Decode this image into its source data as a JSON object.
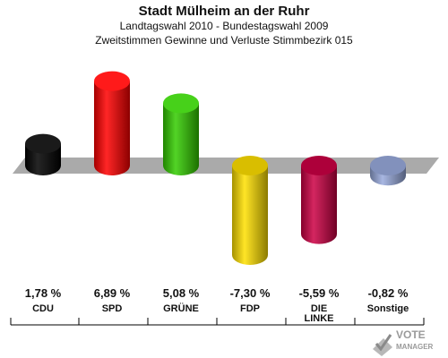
{
  "header": {
    "title": "Stadt Mülheim an der Ruhr",
    "subtitle1": "Landtagswahl 2010 - Bundestagswahl 2009",
    "subtitle2": "Zweitstimmen Gewinne und Verluste Stimmbezirk 015"
  },
  "logo": {
    "line1": "VOTE",
    "line2": "MANAGER"
  },
  "chart_data": {
    "type": "bar",
    "categories": [
      "CDU",
      "SPD",
      "GRÜNE",
      "FDP",
      "DIE LINKE",
      "Sonstige"
    ],
    "category_lines": [
      [
        "CDU"
      ],
      [
        "SPD"
      ],
      [
        "GRÜNE"
      ],
      [
        "FDP"
      ],
      [
        "DIE",
        "LINKE"
      ],
      [
        "Sonstige"
      ]
    ],
    "values": [
      1.78,
      6.89,
      5.08,
      -7.3,
      -5.59,
      -0.82
    ],
    "value_labels": [
      "1,78 %",
      "6,89 %",
      "5,08 %",
      "-7,30 %",
      "-5,59 %",
      "-0,82 %"
    ],
    "colors": [
      "#000000",
      "#ff0000",
      "#33cc00",
      "#ffe000",
      "#cc0044",
      "#99aadd"
    ],
    "title": "Stadt Mülheim an der Ruhr",
    "xlabel": "",
    "ylabel": "",
    "ylim": [
      -8,
      8
    ],
    "grid": false,
    "legend": "none"
  }
}
